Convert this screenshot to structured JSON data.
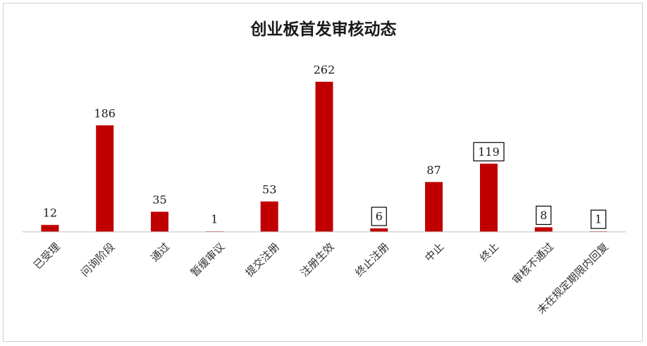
{
  "chart_data": {
    "type": "bar",
    "title": "创业板首发审核动态",
    "categories": [
      "已受理",
      "问询阶段",
      "通过",
      "暂缓审议",
      "提交注册",
      "注册生效",
      "终止注册",
      "中止",
      "终止",
      "审核不通过",
      "未在规定期限内回复"
    ],
    "values": [
      12,
      186,
      35,
      1,
      53,
      262,
      6,
      87,
      119,
      8,
      1
    ],
    "boxed_labels": [
      false,
      false,
      false,
      false,
      false,
      false,
      true,
      false,
      true,
      true,
      true
    ],
    "bar_color": "#c00000",
    "axis_color": "#bfbfbf",
    "ylim": [
      0,
      262
    ],
    "grid": false,
    "legend": "none"
  }
}
